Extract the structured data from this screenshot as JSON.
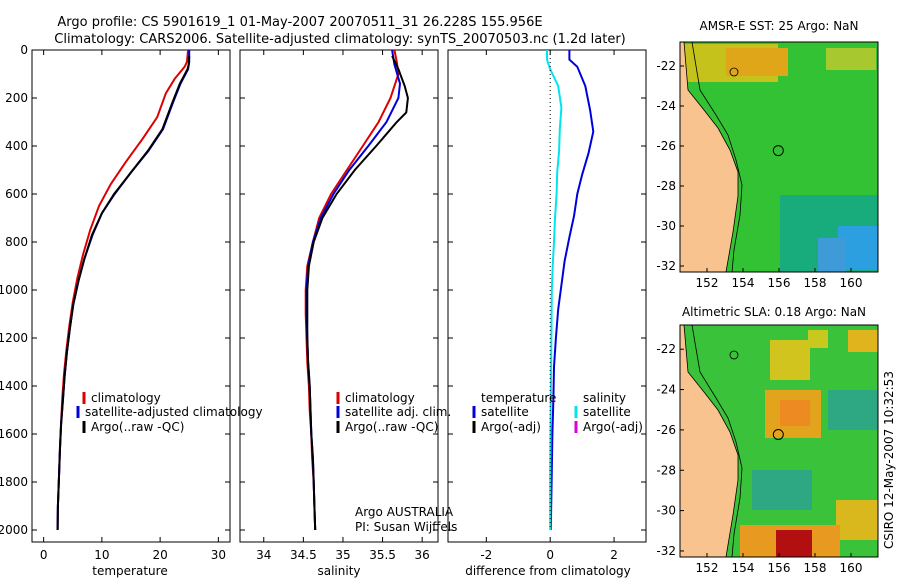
{
  "header": {
    "line1": "Argo profile: CS 5901619_1 01-May-2007 20070511_31 26.228S 155.956E",
    "line2": "Climatology: CARS2006. Satellite-adjusted climatology: synTS_20070503.nc (1.2d later)"
  },
  "side_label": "CSIRO 12-May-2007 10:32:53",
  "credit": {
    "line1": "Argo AUSTRALIA",
    "line2": "PI: Susan Wijffels"
  },
  "colors": {
    "red": "#dd0000",
    "blue": "#0000dd",
    "black": "#000000",
    "cyan": "#00e5ee",
    "magenta": "#dd00dd"
  },
  "chart_data": [
    {
      "type": "line",
      "xlabel": "temperature",
      "ylabel": "",
      "xlim": [
        -2,
        32
      ],
      "ylim": [
        2050,
        0
      ],
      "xticks": [
        "0",
        "10",
        "20",
        "30"
      ],
      "yticks": [
        "0",
        "200",
        "400",
        "600",
        "800",
        "1000",
        "1200",
        "1400",
        "1600",
        "1800",
        "2000"
      ],
      "legend": [
        "climatology",
        "satellite-adjusted climatology",
        "Argo(..raw -QC)"
      ],
      "series": [
        {
          "name": "climatology",
          "color": "red",
          "points": [
            [
              24.8,
              0
            ],
            [
              24.6,
              50
            ],
            [
              24.2,
              70
            ],
            [
              22.5,
              120
            ],
            [
              21.0,
              180
            ],
            [
              19.5,
              280
            ],
            [
              17.0,
              370
            ],
            [
              14.0,
              470
            ],
            [
              11.5,
              560
            ],
            [
              9.5,
              650
            ],
            [
              8.0,
              750
            ],
            [
              6.8,
              850
            ],
            [
              5.8,
              950
            ],
            [
              5.0,
              1050
            ],
            [
              4.4,
              1150
            ],
            [
              3.9,
              1250
            ],
            [
              3.5,
              1350
            ],
            [
              3.2,
              1450
            ],
            [
              3.0,
              1550
            ],
            [
              2.8,
              1650
            ],
            [
              2.6,
              1800
            ],
            [
              2.45,
              1900
            ],
            [
              2.4,
              2000
            ]
          ]
        },
        {
          "name": "satellite-adjusted climatology",
          "color": "blue",
          "points": [
            [
              25.0,
              0
            ],
            [
              25.0,
              50
            ],
            [
              24.8,
              80
            ],
            [
              23.5,
              140
            ],
            [
              22.2,
              220
            ],
            [
              20.5,
              330
            ],
            [
              18.0,
              420
            ],
            [
              15.0,
              510
            ],
            [
              12.2,
              600
            ],
            [
              10.0,
              680
            ],
            [
              8.4,
              770
            ],
            [
              7.0,
              870
            ],
            [
              6.0,
              960
            ],
            [
              5.1,
              1060
            ],
            [
              4.5,
              1160
            ],
            [
              4.0,
              1260
            ],
            [
              3.6,
              1360
            ],
            [
              3.3,
              1460
            ],
            [
              3.0,
              1560
            ],
            [
              2.8,
              1660
            ],
            [
              2.6,
              1800
            ],
            [
              2.45,
              1900
            ],
            [
              2.4,
              2000
            ]
          ]
        },
        {
          "name": "Argo(..raw -QC)",
          "color": "black",
          "points": [
            [
              25.0,
              25
            ],
            [
              24.9,
              60
            ],
            [
              24.7,
              80
            ],
            [
              23.4,
              140
            ],
            [
              22.1,
              220
            ],
            [
              20.4,
              330
            ],
            [
              17.9,
              420
            ],
            [
              15.0,
              510
            ],
            [
              12.1,
              600
            ],
            [
              10.0,
              680
            ],
            [
              8.3,
              770
            ],
            [
              7.0,
              870
            ],
            [
              6.0,
              960
            ],
            [
              5.1,
              1060
            ],
            [
              4.5,
              1160
            ],
            [
              4.0,
              1260
            ],
            [
              3.6,
              1360
            ],
            [
              3.3,
              1460
            ],
            [
              3.0,
              1560
            ],
            [
              2.8,
              1660
            ],
            [
              2.6,
              1800
            ],
            [
              2.45,
              1900
            ],
            [
              2.4,
              2000
            ]
          ]
        }
      ]
    },
    {
      "type": "line",
      "xlabel": "salinity",
      "ylabel": "",
      "xlim": [
        33.7,
        36.2
      ],
      "ylim": [
        2050,
        0
      ],
      "xticks": [
        "34",
        "34.5",
        "35",
        "35.5",
        "36"
      ],
      "legend": [
        "climatology",
        "satellite adj. clim.",
        "Argo(..raw -QC)"
      ],
      "series": [
        {
          "name": "climatology",
          "color": "red",
          "points": [
            [
              35.65,
              0
            ],
            [
              35.68,
              50
            ],
            [
              35.7,
              100
            ],
            [
              35.6,
              200
            ],
            [
              35.45,
              300
            ],
            [
              35.25,
              400
            ],
            [
              35.05,
              500
            ],
            [
              34.85,
              600
            ],
            [
              34.7,
              700
            ],
            [
              34.62,
              800
            ],
            [
              34.55,
              900
            ],
            [
              34.53,
              1000
            ],
            [
              34.53,
              1100
            ],
            [
              34.54,
              1200
            ],
            [
              34.55,
              1300
            ],
            [
              34.57,
              1400
            ],
            [
              34.58,
              1500
            ],
            [
              34.6,
              1600
            ],
            [
              34.61,
              1700
            ],
            [
              34.63,
              1800
            ],
            [
              34.64,
              1900
            ],
            [
              34.65,
              2000
            ]
          ]
        },
        {
          "name": "satellite adj. clim.",
          "color": "blue",
          "points": [
            [
              35.62,
              0
            ],
            [
              35.65,
              60
            ],
            [
              35.72,
              140
            ],
            [
              35.7,
              200
            ],
            [
              35.55,
              300
            ],
            [
              35.32,
              400
            ],
            [
              35.08,
              500
            ],
            [
              34.88,
              600
            ],
            [
              34.72,
              700
            ],
            [
              34.62,
              800
            ],
            [
              34.56,
              900
            ],
            [
              34.54,
              1000
            ],
            [
              34.54,
              1100
            ],
            [
              34.55,
              1200
            ],
            [
              34.56,
              1300
            ],
            [
              34.58,
              1400
            ],
            [
              34.59,
              1500
            ],
            [
              34.6,
              1600
            ],
            [
              34.62,
              1700
            ],
            [
              34.63,
              1800
            ],
            [
              34.64,
              1900
            ],
            [
              34.65,
              2000
            ]
          ]
        },
        {
          "name": "Argo(..raw -QC)",
          "color": "black",
          "points": [
            [
              35.62,
              25
            ],
            [
              35.7,
              80
            ],
            [
              35.78,
              150
            ],
            [
              35.82,
              200
            ],
            [
              35.8,
              260
            ],
            [
              35.68,
              300
            ],
            [
              35.42,
              400
            ],
            [
              35.15,
              500
            ],
            [
              34.92,
              600
            ],
            [
              34.74,
              700
            ],
            [
              34.63,
              800
            ],
            [
              34.57,
              900
            ],
            [
              34.55,
              1000
            ],
            [
              34.55,
              1100
            ],
            [
              34.55,
              1200
            ],
            [
              34.56,
              1300
            ],
            [
              34.58,
              1400
            ],
            [
              34.59,
              1500
            ],
            [
              34.6,
              1600
            ],
            [
              34.62,
              1700
            ],
            [
              34.63,
              1800
            ],
            [
              34.64,
              1900
            ],
            [
              34.65,
              2000
            ]
          ]
        }
      ]
    },
    {
      "type": "line",
      "xlabel": "difference from climatology",
      "ylabel": "",
      "xlim": [
        -3.2,
        3.0
      ],
      "ylim": [
        2050,
        0
      ],
      "xticks": [
        "-2",
        "0",
        "2"
      ],
      "legend_left_title": "temperature",
      "legend_right_title": "salinity",
      "legend": [
        "satellite",
        "Argo(-adj)",
        "satellite",
        "Argo(-adj)"
      ],
      "series": [
        {
          "name": "temperature satellite",
          "color": "blue",
          "points": [
            [
              0.6,
              0
            ],
            [
              0.6,
              40
            ],
            [
              0.85,
              70
            ],
            [
              1.1,
              150
            ],
            [
              1.25,
              250
            ],
            [
              1.35,
              340
            ],
            [
              1.2,
              430
            ],
            [
              1.0,
              520
            ],
            [
              0.85,
              600
            ],
            [
              0.75,
              690
            ],
            [
              0.6,
              780
            ],
            [
              0.45,
              880
            ],
            [
              0.35,
              980
            ],
            [
              0.25,
              1080
            ],
            [
              0.18,
              1200
            ],
            [
              0.12,
              1320
            ],
            [
              0.1,
              1450
            ],
            [
              0.07,
              1600
            ],
            [
              0.05,
              1750
            ],
            [
              0.03,
              1900
            ],
            [
              0.02,
              2000
            ]
          ]
        },
        {
          "name": "salinity satellite",
          "color": "cyan",
          "points": [
            [
              -0.1,
              0
            ],
            [
              -0.1,
              40
            ],
            [
              0.0,
              80
            ],
            [
              0.25,
              150
            ],
            [
              0.35,
              240
            ],
            [
              0.3,
              330
            ],
            [
              0.28,
              420
            ],
            [
              0.22,
              510
            ],
            [
              0.2,
              600
            ],
            [
              0.15,
              700
            ],
            [
              0.12,
              800
            ],
            [
              0.08,
              900
            ],
            [
              0.05,
              1000
            ],
            [
              0.04,
              1150
            ],
            [
              0.03,
              1300
            ],
            [
              0.02,
              1450
            ],
            [
              0.01,
              1600
            ],
            [
              0.0,
              1750
            ],
            [
              0.0,
              2000
            ]
          ]
        },
        {
          "name": "zero",
          "color": "black",
          "dotted": true,
          "points": [
            [
              0,
              0
            ],
            [
              0,
              2000
            ]
          ]
        }
      ]
    }
  ],
  "maps": [
    {
      "title": "AMSR-E SST: 25 Argo: NaN",
      "lat_ticks": [
        "-22",
        "-24",
        "-26",
        "-28",
        "-30",
        "-32"
      ],
      "lon_ticks": [
        "152",
        "154",
        "156",
        "158",
        "160"
      ],
      "xlim": [
        150.5,
        161.5
      ],
      "ylim": [
        -32.3,
        -20.8
      ],
      "float": [
        155.96,
        -26.23
      ]
    },
    {
      "title": "Altimetric SLA: 0.18 Argo: NaN",
      "lat_ticks": [
        "-22",
        "-24",
        "-26",
        "-28",
        "-30",
        "-32"
      ],
      "lon_ticks": [
        "152",
        "154",
        "156",
        "158",
        "160"
      ],
      "xlim": [
        150.5,
        161.5
      ],
      "ylim": [
        -32.3,
        -20.8
      ],
      "float": [
        155.96,
        -26.23
      ]
    }
  ]
}
